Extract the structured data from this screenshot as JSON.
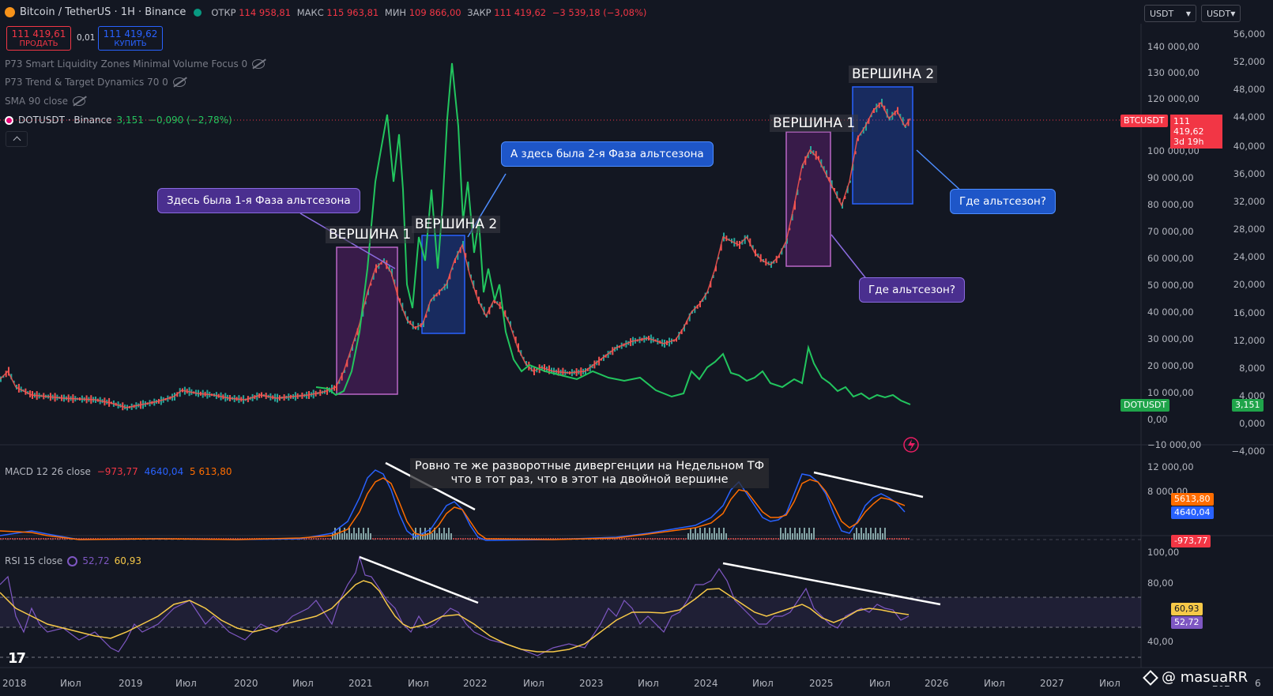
{
  "header": {
    "symbol": "Bitcoin / TetherUS · 1H · Binance",
    "open_label": "ОТКР",
    "open": "114 958,81",
    "high_label": "МАКС",
    "high": "115 963,81",
    "low_label": "МИН",
    "low": "109 866,00",
    "close_label": "ЗАКР",
    "close": "111 419,62",
    "change": "−3 539,18 (−3,08%)",
    "sell_price": "111 419,61",
    "sell_label": "ПРОДАТЬ",
    "spread": "0,01",
    "buy_price": "111 419,62",
    "buy_label": "КУПИТЬ"
  },
  "currency_selects": [
    "USDT",
    "USDT"
  ],
  "indicators": [
    {
      "name": "P73 Smart Liquidity Zones Minimal Volume Focus 0"
    },
    {
      "name": "P73 Trend & Target Dynamics 70 0"
    },
    {
      "name": "SMA 90 close"
    }
  ],
  "overlay": {
    "name": "DOTUSDT · Binance",
    "value": "3,151",
    "change": "−0,090 (−2,78%)"
  },
  "colors": {
    "up": "#26a69a",
    "down": "#ef5350",
    "dot": "#22c55e",
    "macd": "#2962ff",
    "signal": "#ff6d00",
    "rsi": "#7e57c2",
    "rsi_ma": "#f7c948"
  },
  "left_axis": [
    "140 000,00",
    "130 000,00",
    "120 000,00",
    "100 000,00",
    "90 000,00",
    "80 000,00",
    "70 000,00",
    "60 000,00",
    "50 000,00",
    "40 000,00",
    "30 000,00",
    "20 000,00",
    "10 000,00",
    "0,00",
    "−10 000,00"
  ],
  "right_axis": [
    "56,000",
    "52,000",
    "48,000",
    "44,000",
    "40,000",
    "36,000",
    "32,000",
    "28,000",
    "24,000",
    "20,000",
    "16,000",
    "12,000",
    "8,000",
    "4,000",
    "0,000",
    "−4,000"
  ],
  "price_tags": {
    "btc_label": "BTCUSDT",
    "btc_price": "111 419,62",
    "btc_timer": "3d 19h",
    "dot_label": "DOTUSDT",
    "dot_price": "3,151"
  },
  "annotations": {
    "phase1": "Здесь была 1-я Фаза альтсезона",
    "phase2": "А здесь была 2-я Фаза альтсезона",
    "peak1_left": "ВЕРШИНА 1",
    "peak2_left": "ВЕРШИНА 2",
    "peak1_right": "ВЕРШИНА 1",
    "peak2_right": "ВЕРШИНА 2",
    "where1": "Где альтсезон?",
    "where2": "Где альтсезон?",
    "divergence_line1": "Ровно те же разворотные дивергенции на Недельном ТФ",
    "divergence_line2": "что в тот раз, что в этот на двойной вершине"
  },
  "macd": {
    "label": "MACD 12 26 close",
    "hist": "−973,77",
    "macd": "4640,04",
    "signal": "5 613,80",
    "axis": [
      "12 000,00",
      "8 000,00"
    ],
    "tag_signal": "5613,80",
    "tag_macd": "4640,04",
    "tag_hist": "-973,77"
  },
  "rsi": {
    "label": "RSI 15 close",
    "value": "52,72",
    "ma": "60,93",
    "axis": [
      "100,00",
      "80,00",
      "40,00"
    ],
    "tag_ma": "60,93",
    "tag_value": "52,72"
  },
  "x_axis": [
    "2018",
    "Июл",
    "2019",
    "Июл",
    "2020",
    "Июл",
    "2021",
    "Июл",
    "2022",
    "Июл",
    "2023",
    "Июл",
    "2024",
    "Июл",
    "2025",
    "Июл",
    "2026",
    "Июл",
    "2027",
    "Июл",
    "202",
    "6"
  ],
  "watermark": "@ masuaRR"
}
